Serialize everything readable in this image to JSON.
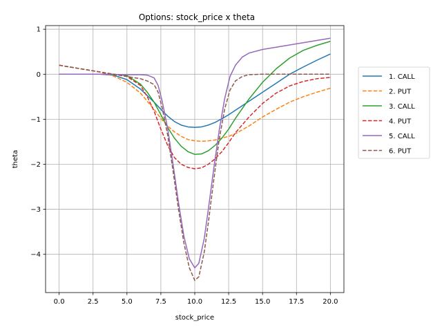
{
  "chart_data": {
    "type": "line",
    "title": "Options: stock_price x theta",
    "xlabel": "stock_price",
    "ylabel": "theta",
    "xlim": [
      -1.0,
      21.0
    ],
    "ylim": [
      -4.85,
      1.08
    ],
    "xticks": [
      0.0,
      2.5,
      5.0,
      7.5,
      10.0,
      12.5,
      15.0,
      17.5,
      20.0
    ],
    "xtick_labels": [
      "0.0",
      "2.5",
      "5.0",
      "7.5",
      "10.0",
      "12.5",
      "15.0",
      "17.5",
      "20.0"
    ],
    "yticks": [
      1,
      0,
      -1,
      -2,
      -3,
      -4
    ],
    "ytick_labels": [
      "1",
      "0",
      "−1",
      "−2",
      "−3",
      "−4"
    ],
    "grid": true,
    "legend_position": "right, outside plot",
    "series": [
      {
        "name": "1. CALL",
        "color": "#1f77b4",
        "dash": "solid",
        "x": [
          0,
          2,
          3,
          4,
          5,
          6,
          7,
          7.5,
          8,
          8.5,
          9,
          9.5,
          10,
          10.5,
          11,
          11.5,
          12,
          12.5,
          13,
          14,
          15,
          16,
          17,
          18,
          19,
          20
        ],
        "y": [
          0,
          0,
          0,
          -0.02,
          -0.12,
          -0.33,
          -0.62,
          -0.78,
          -0.93,
          -1.05,
          -1.13,
          -1.17,
          -1.18,
          -1.17,
          -1.13,
          -1.07,
          -0.99,
          -0.9,
          -0.8,
          -0.6,
          -0.4,
          -0.2,
          0.0,
          0.16,
          0.31,
          0.45
        ]
      },
      {
        "name": "2. PUT",
        "color": "#ff7f0e",
        "dash": "dashed",
        "x": [
          0,
          1,
          2,
          3,
          4,
          5,
          6,
          7,
          7.5,
          8,
          8.5,
          9,
          9.5,
          10,
          10.5,
          11,
          11.5,
          12,
          12.5,
          13,
          14,
          15,
          16,
          17,
          18,
          19,
          20
        ],
        "y": [
          0.2,
          0.15,
          0.1,
          0.05,
          -0.04,
          -0.18,
          -0.42,
          -0.78,
          -0.98,
          -1.15,
          -1.28,
          -1.38,
          -1.45,
          -1.48,
          -1.49,
          -1.48,
          -1.46,
          -1.42,
          -1.38,
          -1.32,
          -1.15,
          -0.95,
          -0.78,
          -0.62,
          -0.5,
          -0.4,
          -0.31
        ]
      },
      {
        "name": "3. CALL",
        "color": "#2ca02c",
        "dash": "solid",
        "x": [
          0,
          3,
          4,
          5,
          6,
          6.5,
          7,
          7.5,
          8,
          8.5,
          9,
          9.5,
          10,
          10.5,
          11,
          11.5,
          12,
          12.5,
          13,
          14,
          15,
          16,
          17,
          18,
          19,
          20
        ],
        "y": [
          0,
          0,
          0,
          -0.03,
          -0.22,
          -0.4,
          -0.62,
          -0.9,
          -1.18,
          -1.42,
          -1.6,
          -1.72,
          -1.78,
          -1.77,
          -1.7,
          -1.58,
          -1.42,
          -1.22,
          -0.98,
          -0.55,
          -0.18,
          0.12,
          0.36,
          0.53,
          0.64,
          0.73
        ]
      },
      {
        "name": "4. PUT",
        "color": "#d62728",
        "dash": "dashed",
        "x": [
          0,
          1,
          2,
          3,
          4,
          5,
          6,
          6.5,
          7,
          7.5,
          8,
          8.5,
          9,
          9.5,
          10,
          10.5,
          11,
          11.5,
          12,
          12.5,
          13,
          14,
          15,
          16,
          17,
          18,
          19,
          20
        ],
        "y": [
          0.2,
          0.15,
          0.1,
          0.05,
          0.0,
          -0.05,
          -0.25,
          -0.5,
          -0.82,
          -1.22,
          -1.58,
          -1.85,
          -2.0,
          -2.07,
          -2.1,
          -2.08,
          -2.0,
          -1.88,
          -1.72,
          -1.52,
          -1.3,
          -0.95,
          -0.65,
          -0.42,
          -0.26,
          -0.16,
          -0.1,
          -0.07
        ]
      },
      {
        "name": "5. CALL",
        "color": "#9467bd",
        "dash": "solid",
        "x": [
          0,
          3,
          5,
          6,
          6.5,
          7,
          7.3,
          7.6,
          8,
          8.4,
          8.8,
          9.2,
          9.6,
          10,
          10.3,
          10.7,
          11,
          11.4,
          11.8,
          12.2,
          12.6,
          13,
          13.5,
          14,
          15,
          16,
          17,
          18,
          19,
          20
        ],
        "y": [
          0,
          0,
          -0.01,
          -0.01,
          -0.02,
          -0.08,
          -0.25,
          -0.6,
          -1.2,
          -2.0,
          -2.85,
          -3.6,
          -4.1,
          -4.3,
          -4.2,
          -3.65,
          -3.0,
          -2.1,
          -1.25,
          -0.55,
          -0.05,
          0.2,
          0.38,
          0.47,
          0.55,
          0.6,
          0.65,
          0.7,
          0.75,
          0.8
        ]
      },
      {
        "name": "6. PUT",
        "color": "#8c564b",
        "dash": "dashed",
        "x": [
          0,
          1,
          2,
          3,
          4,
          5,
          6,
          6.5,
          7,
          7.3,
          7.6,
          8,
          8.4,
          8.8,
          9.2,
          9.6,
          10,
          10.3,
          10.7,
          11,
          11.4,
          11.8,
          12.2,
          12.6,
          13,
          13.5,
          14,
          15,
          16,
          17,
          18,
          19,
          20
        ],
        "y": [
          0.2,
          0.15,
          0.1,
          0.05,
          0.0,
          -0.05,
          -0.1,
          -0.15,
          -0.23,
          -0.4,
          -0.75,
          -1.35,
          -2.15,
          -3.0,
          -3.75,
          -4.3,
          -4.58,
          -4.5,
          -3.95,
          -3.3,
          -2.35,
          -1.45,
          -0.78,
          -0.35,
          -0.15,
          -0.05,
          -0.01,
          0,
          0,
          0,
          0,
          0,
          0
        ]
      }
    ]
  }
}
